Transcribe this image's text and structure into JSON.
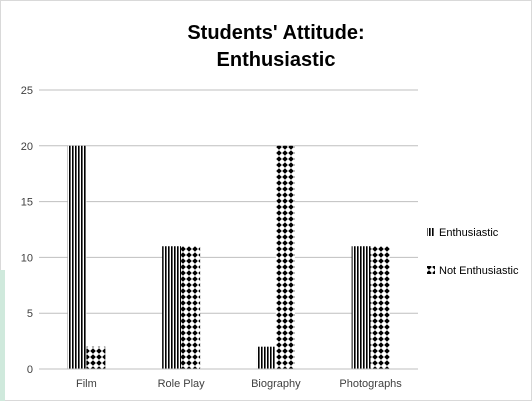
{
  "chart_data": {
    "type": "bar",
    "title_lines": [
      "Students' Attitude:",
      "Enthusiastic"
    ],
    "xlabel": "",
    "ylabel": "",
    "categories": [
      "Film",
      "Role Play",
      "Biography",
      "Photographs"
    ],
    "series": [
      {
        "name": "Enthusiastic",
        "values": [
          20,
          11,
          2,
          11
        ],
        "pattern": "vertical-stripes"
      },
      {
        "name": "Not Enthusiastic",
        "values": [
          2,
          11,
          20,
          11
        ],
        "pattern": "diamond-checker"
      }
    ],
    "ylim": [
      0,
      25
    ],
    "yticks": [
      "0",
      "5",
      "10",
      "15",
      "20",
      "25"
    ],
    "grid": true,
    "legend_position": "right",
    "colors": {
      "ink": "#000000",
      "grid": "#bfbfbf",
      "axis_text": "#404040"
    }
  }
}
